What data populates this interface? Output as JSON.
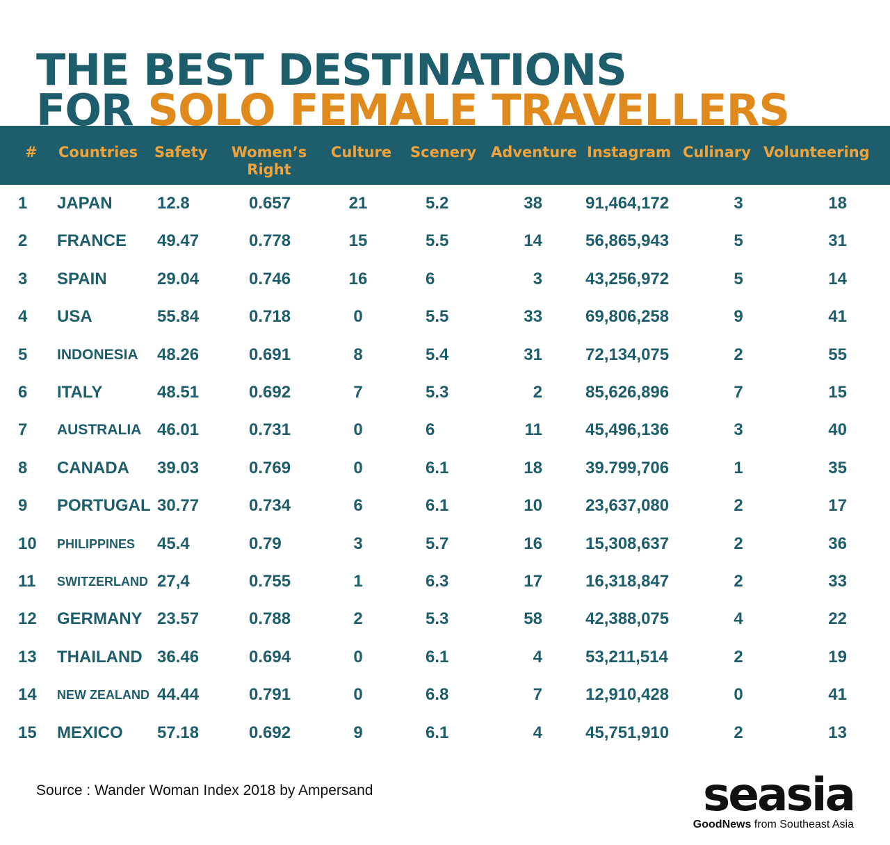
{
  "title": {
    "line1": "THE BEST DESTINATIONS",
    "line2_prefix": "FOR ",
    "line2_accent": "SOLO FEMALE TRAVELLERS"
  },
  "headers": {
    "rank": "#",
    "country": "Countries",
    "safety": "Safety",
    "women_line1": "Women’s",
    "women_line2": "Right",
    "culture": "Culture",
    "scenery": "Scenery",
    "adventure": "Adventure",
    "instagram": "Instagram",
    "culinary": "Culinary",
    "volunteering": "Volunteering"
  },
  "rows": [
    {
      "rank": "1",
      "country": "JAPAN",
      "safety": "12.8",
      "women": "0.657",
      "culture": "21",
      "scenery": "5.2",
      "adventure": "38",
      "instagram": "91,464,172",
      "culinary": "3",
      "volunteering": "18"
    },
    {
      "rank": "2",
      "country": "FRANCE",
      "safety": "49.47",
      "women": "0.778",
      "culture": "15",
      "scenery": "5.5",
      "adventure": "14",
      "instagram": "56,865,943",
      "culinary": "5",
      "volunteering": "31"
    },
    {
      "rank": "3",
      "country": "SPAIN",
      "safety": "29.04",
      "women": "0.746",
      "culture": "16",
      "scenery": "6",
      "adventure": "3",
      "instagram": "43,256,972",
      "culinary": "5",
      "volunteering": "14"
    },
    {
      "rank": "4",
      "country": "USA",
      "safety": "55.84",
      "women": "0.718",
      "culture": "0",
      "scenery": "5.5",
      "adventure": "33",
      "instagram": "69,806,258",
      "culinary": "9",
      "volunteering": "41"
    },
    {
      "rank": "5",
      "country": "INDONESIA",
      "safety": "48.26",
      "women": "0.691",
      "culture": "8",
      "scenery": "5.4",
      "adventure": "31",
      "instagram": "72,134,075",
      "culinary": "2",
      "volunteering": "55"
    },
    {
      "rank": "6",
      "country": "ITALY",
      "safety": "48.51",
      "women": "0.692",
      "culture": "7",
      "scenery": "5.3",
      "adventure": "2",
      "instagram": "85,626,896",
      "culinary": "7",
      "volunteering": "15"
    },
    {
      "rank": "7",
      "country": "AUSTRALIA",
      "safety": "46.01",
      "women": "0.731",
      "culture": "0",
      "scenery": "6",
      "adventure": "11",
      "instagram": "45,496,136",
      "culinary": "3",
      "volunteering": "40"
    },
    {
      "rank": "8",
      "country": "CANADA",
      "safety": "39.03",
      "women": "0.769",
      "culture": "0",
      "scenery": "6.1",
      "adventure": "18",
      "instagram": "39.799,706",
      "culinary": "1",
      "volunteering": "35"
    },
    {
      "rank": "9",
      "country": "PORTUGAL",
      "safety": "30.77",
      "women": "0.734",
      "culture": "6",
      "scenery": "6.1",
      "adventure": "10",
      "instagram": "23,637,080",
      "culinary": "2",
      "volunteering": "17"
    },
    {
      "rank": "10",
      "country": "PHILIPPINES",
      "safety": "45.4",
      "women": "0.79",
      "culture": "3",
      "scenery": "5.7",
      "adventure": "16",
      "instagram": "15,308,637",
      "culinary": "2",
      "volunteering": "36"
    },
    {
      "rank": "11",
      "country": "SWITZERLAND",
      "safety": "27,4",
      "women": "0.755",
      "culture": "1",
      "scenery": "6.3",
      "adventure": "17",
      "instagram": "16,318,847",
      "culinary": "2",
      "volunteering": "33"
    },
    {
      "rank": "12",
      "country": "GERMANY",
      "safety": "23.57",
      "women": "0.788",
      "culture": "2",
      "scenery": "5.3",
      "adventure": "58",
      "instagram": "42,388,075",
      "culinary": "4",
      "volunteering": "22"
    },
    {
      "rank": "13",
      "country": "THAILAND",
      "safety": "36.46",
      "women": "0.694",
      "culture": "0",
      "scenery": "6.1",
      "adventure": "4",
      "instagram": "53,211,514",
      "culinary": "2",
      "volunteering": "19"
    },
    {
      "rank": "14",
      "country": "NEW ZEALAND",
      "safety": "44.44",
      "women": "0.791",
      "culture": "0",
      "scenery": "6.8",
      "adventure": "7",
      "instagram": "12,910,428",
      "culinary": "0",
      "volunteering": "41"
    },
    {
      "rank": "15",
      "country": "MEXICO",
      "safety": "57.18",
      "women": "0.692",
      "culture": "9",
      "scenery": "6.1",
      "adventure": "4",
      "instagram": "45,751,910",
      "culinary": "2",
      "volunteering": "13"
    }
  ],
  "source": "Source : Wander Woman Index 2018 by Ampersand",
  "logo": {
    "word": "seasia",
    "tag_bold": "GoodNews",
    "tag_rest": " from Southeast Asia"
  },
  "colors": {
    "teal": "#1e5d6c",
    "orange": "#e08a1e",
    "header_text": "#f0a33a"
  }
}
